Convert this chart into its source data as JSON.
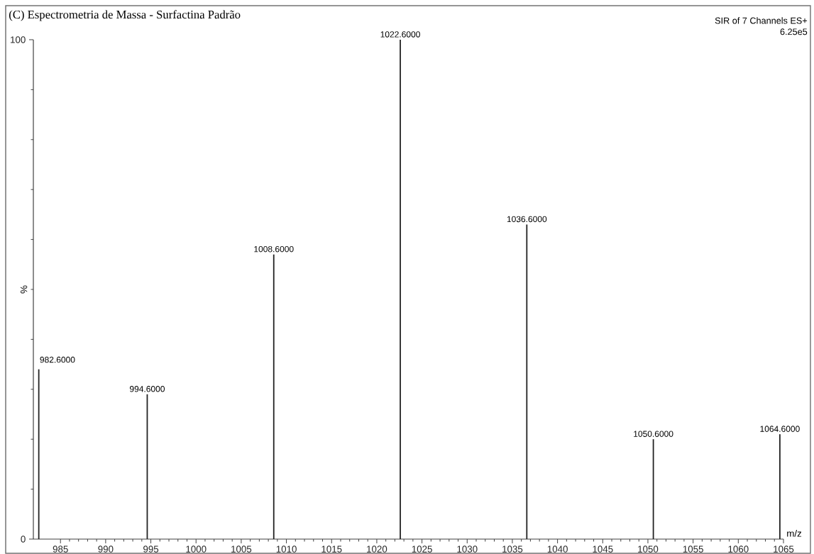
{
  "chart_data": {
    "type": "bar",
    "title": "(C) Espectrometria de Massa - Surfactina Padrão",
    "xlabel": "m/z",
    "ylabel": "%",
    "x": [
      982.6,
      994.6,
      1008.6,
      1022.6,
      1036.6,
      1050.6,
      1064.6
    ],
    "values": [
      34,
      29,
      57,
      100,
      63,
      20,
      21
    ],
    "color": "#222222",
    "xlim": [
      982,
      1065
    ],
    "xticks": [
      985,
      {
        "value": 986,
        "label": null
      },
      {
        "value": 987,
        "label": null
      },
      {
        "value": 988,
        "label": null
      },
      {
        "value": 989,
        "label": null
      },
      990,
      {
        "value": 991,
        "label": null
      },
      {
        "value": 992,
        "label": null
      },
      {
        "value": 993,
        "label": null
      },
      {
        "value": 994,
        "label": null
      },
      995,
      {
        "value": 996,
        "label": null
      },
      {
        "value": 997,
        "label": null
      },
      {
        "value": 998,
        "label": null
      },
      {
        "value": 999,
        "label": null
      },
      1000,
      {
        "value": 1001,
        "label": null
      },
      {
        "value": 1002,
        "label": null
      },
      {
        "value": 1003,
        "label": null
      },
      {
        "value": 1004,
        "label": null
      },
      1005,
      {
        "value": 1006,
        "label": null
      },
      {
        "value": 1007,
        "label": null
      },
      {
        "value": 1008,
        "label": null
      },
      {
        "value": 1009,
        "label": null
      },
      1010,
      {
        "value": 1011,
        "label": null
      },
      {
        "value": 1012,
        "label": null
      },
      {
        "value": 1013,
        "label": null
      },
      {
        "value": 1014,
        "label": null
      },
      1015,
      {
        "value": 1016,
        "label": null
      },
      {
        "value": 1017,
        "label": null
      },
      {
        "value": 1018,
        "label": null
      },
      {
        "value": 1019,
        "label": null
      },
      1020,
      {
        "value": 1021,
        "label": null
      },
      {
        "value": 1022,
        "label": null
      },
      {
        "value": 1023,
        "label": null
      },
      {
        "value": 1024,
        "label": null
      },
      1025,
      {
        "value": 1026,
        "label": null
      },
      {
        "value": 1027,
        "label": null
      },
      {
        "value": 1028,
        "label": null
      },
      {
        "value": 1029,
        "label": null
      },
      1030,
      {
        "value": 1031,
        "label": null
      },
      {
        "value": 1032,
        "label": null
      },
      {
        "value": 1033,
        "label": null
      },
      {
        "value": 1034,
        "label": null
      },
      1035,
      {
        "value": 1036,
        "label": null
      },
      {
        "value": 1037,
        "label": null
      },
      {
        "value": 1038,
        "label": null
      },
      {
        "value": 1039,
        "label": null
      },
      1040,
      {
        "value": 1041,
        "label": null
      },
      {
        "value": 1042,
        "label": null
      },
      {
        "value": 1043,
        "label": null
      },
      {
        "value": 1044,
        "label": null
      },
      1045,
      {
        "value": 1046,
        "label": null
      },
      {
        "value": 1047,
        "label": null
      },
      {
        "value": 1048,
        "label": null
      },
      {
        "value": 1049,
        "label": null
      },
      1050,
      {
        "value": 1051,
        "label": null
      },
      {
        "value": 1052,
        "label": null
      },
      {
        "value": 1053,
        "label": null
      },
      {
        "value": 1054,
        "label": null
      },
      1055,
      {
        "value": 1056,
        "label": null
      },
      {
        "value": 1057,
        "label": null
      },
      {
        "value": 1058,
        "label": null
      },
      {
        "value": 1059,
        "label": null
      },
      1060,
      {
        "value": 1061,
        "label": null
      },
      {
        "value": 1062,
        "label": null
      },
      {
        "value": 1063,
        "label": null
      },
      {
        "value": 1064,
        "label": null
      },
      1065
    ],
    "ylim": [
      0,
      100
    ],
    "yticks": [
      0,
      {
        "value": 10,
        "label": null
      },
      {
        "value": 20,
        "label": null
      },
      {
        "value": 30,
        "label": null
      },
      {
        "value": 40,
        "label": null
      },
      {
        "value": 50,
        "label": null
      },
      {
        "value": 60,
        "label": null
      },
      {
        "value": 70,
        "label": null
      },
      {
        "value": 80,
        "label": null
      },
      {
        "value": 90,
        "label": null
      },
      100
    ],
    "annotations": [
      {
        "text": "982.6000",
        "x": 982.6,
        "y": 34
      },
      {
        "text": "994.6000",
        "x": 994.6,
        "y": 29
      },
      {
        "text": "1008.6000",
        "x": 1008.6,
        "y": 57
      },
      {
        "text": "1022.6000",
        "x": 1022.6,
        "y": 100
      },
      {
        "text": "1036.6000",
        "x": 1036.6,
        "y": 63
      },
      {
        "text": "1050.6000",
        "x": 1050.6,
        "y": 20
      },
      {
        "text": "1064.6000",
        "x": 1064.6,
        "y": 21
      },
      "SIR of 7 Channels ES+",
      "6.25e5"
    ]
  }
}
